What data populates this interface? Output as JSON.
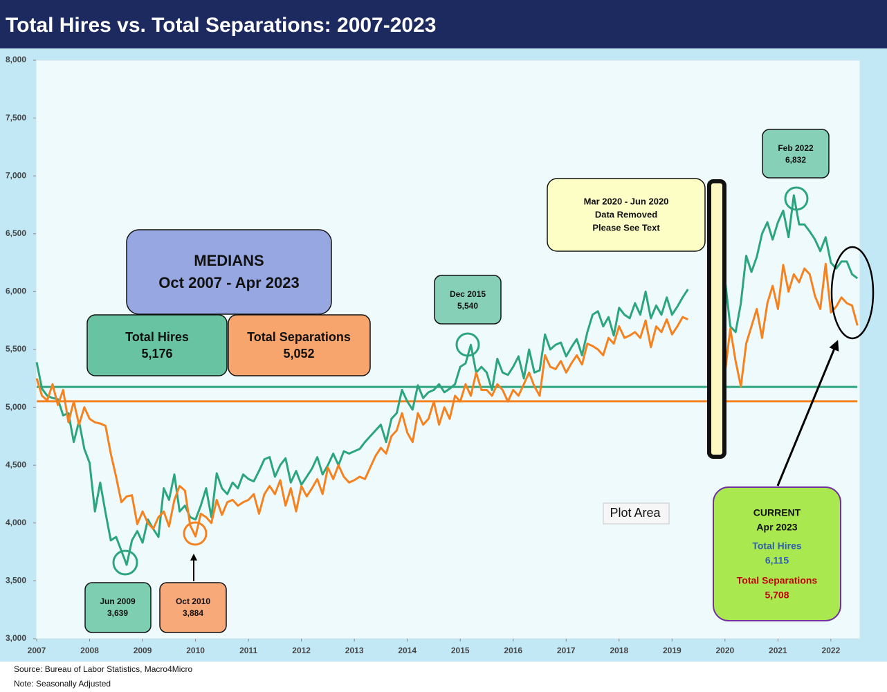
{
  "chart_data": {
    "type": "line",
    "title": "Total Hires vs. Total Separations: 2007-2023",
    "source": "Source: Bureau of Labor Statistics, Macro4Micro",
    "note": "Note: Seasonally Adjusted",
    "tooltip": "Plot Area",
    "xlim": [
      2007,
      2022.55
    ],
    "xticks": [
      2007,
      2008,
      2009,
      2010,
      2011,
      2012,
      2013,
      2014,
      2015,
      2016,
      2017,
      2018,
      2019,
      2020,
      2021,
      2022
    ],
    "ylim": [
      3000,
      8000
    ],
    "yticks": [
      {
        "value": 3000,
        "label": "3,000"
      },
      {
        "value": 3500,
        "label": "3,500"
      },
      {
        "value": 4000,
        "label": "4,000"
      },
      {
        "value": 4500,
        "label": "4,500"
      },
      {
        "value": 5000,
        "label": "5,000"
      },
      {
        "value": 5500,
        "label": "5,500"
      },
      {
        "value": 6000,
        "label": "6,000"
      },
      {
        "value": 6500,
        "label": "6,500"
      },
      {
        "value": 7000,
        "label": "7,000"
      },
      {
        "value": 7500,
        "label": "7,500"
      },
      {
        "value": 8000,
        "label": "8,000"
      }
    ],
    "x": [
      2007,
      2007.1,
      2007.2,
      2007.3,
      2007.4,
      2007.5,
      2007.6,
      2007.7,
      2007.8,
      2007.9,
      2008,
      2008.1,
      2008.2,
      2008.3,
      2008.4,
      2008.5,
      2008.6,
      2008.7,
      2008.8,
      2008.9,
      2009,
      2009.1,
      2009.2,
      2009.3,
      2009.4,
      2009.5,
      2009.6,
      2009.7,
      2009.8,
      2009.9,
      2010,
      2010.1,
      2010.2,
      2010.3,
      2010.4,
      2010.5,
      2010.6,
      2010.7,
      2010.8,
      2010.9,
      2011,
      2011.1,
      2011.2,
      2011.3,
      2011.4,
      2011.5,
      2011.6,
      2011.7,
      2011.8,
      2011.9,
      2012,
      2012.1,
      2012.2,
      2012.3,
      2012.4,
      2012.5,
      2012.6,
      2012.7,
      2012.8,
      2012.9,
      2013,
      2013.1,
      2013.2,
      2013.3,
      2013.4,
      2013.5,
      2013.6,
      2013.7,
      2013.8,
      2013.9,
      2014,
      2014.1,
      2014.2,
      2014.3,
      2014.4,
      2014.5,
      2014.6,
      2014.7,
      2014.8,
      2014.9,
      2015,
      2015.1,
      2015.2,
      2015.3,
      2015.4,
      2015.5,
      2015.6,
      2015.7,
      2015.8,
      2015.9,
      2016,
      2016.1,
      2016.2,
      2016.3,
      2016.4,
      2016.5,
      2016.6,
      2016.7,
      2016.8,
      2016.9,
      2017,
      2017.1,
      2017.2,
      2017.3,
      2017.4,
      2017.5,
      2017.6,
      2017.7,
      2017.8,
      2017.9,
      2018,
      2018.1,
      2018.2,
      2018.3,
      2018.4,
      2018.5,
      2018.6,
      2018.7,
      2018.8,
      2018.9,
      2019,
      2019.1,
      2019.2,
      2019.3,
      2019.6,
      2020,
      2020.1,
      2020.2,
      2020.3,
      2020.4,
      2020.5,
      2020.6,
      2020.7,
      2020.8,
      2020.9,
      2021,
      2021.1,
      2021.2,
      2021.3,
      2021.4,
      2021.5,
      2021.6,
      2021.7,
      2021.8,
      2021.9,
      2022,
      2022.1,
      2022.2,
      2022.3,
      2022.4,
      2022.5
    ],
    "series": [
      {
        "name": "Total Hires",
        "color": "#2ca57f",
        "values": [
          5390,
          5160,
          5100,
          5080,
          5070,
          4930,
          4950,
          4700,
          4880,
          4640,
          4520,
          4100,
          4350,
          4090,
          3850,
          3880,
          3760,
          3639,
          3850,
          3930,
          3830,
          4030,
          3950,
          3880,
          4300,
          4200,
          4420,
          4100,
          4150,
          4050,
          4030,
          4150,
          4300,
          4050,
          4430,
          4300,
          4250,
          4350,
          4300,
          4420,
          4380,
          4360,
          4450,
          4550,
          4570,
          4400,
          4500,
          4560,
          4350,
          4450,
          4330,
          4400,
          4470,
          4570,
          4420,
          4500,
          4600,
          4500,
          4620,
          4600,
          4620,
          4640,
          4700,
          4750,
          4800,
          4850,
          4700,
          4900,
          4950,
          5150,
          5050,
          4980,
          5190,
          5080,
          5130,
          5150,
          5200,
          5130,
          5160,
          5200,
          5350,
          5380,
          5540,
          5300,
          5350,
          5300,
          5150,
          5420,
          5300,
          5280,
          5350,
          5440,
          5250,
          5500,
          5300,
          5320,
          5630,
          5500,
          5540,
          5560,
          5440,
          5520,
          5590,
          5450,
          5650,
          5800,
          5830,
          5700,
          5780,
          5620,
          5860,
          5800,
          5770,
          5900,
          5800,
          6000,
          5770,
          5880,
          5800,
          5950,
          5800,
          5870,
          5950,
          6020,
          null,
          6100,
          5700,
          5650,
          5900,
          6310,
          6170,
          6300,
          6500,
          6600,
          6450,
          6600,
          6700,
          6470,
          6832,
          6580,
          6580,
          6520,
          6450,
          6350,
          6470,
          6250,
          6200,
          6260,
          6260,
          6150,
          6115
        ]
      },
      {
        "name": "Total Separations",
        "color": "#f5821f",
        "values": [
          5250,
          5100,
          5060,
          5200,
          5020,
          5150,
          4870,
          5050,
          4850,
          5000,
          4900,
          4870,
          4860,
          4840,
          4600,
          4400,
          4180,
          4230,
          4240,
          3990,
          4100,
          4000,
          3950,
          4050,
          4100,
          3970,
          4200,
          4320,
          4280,
          3980,
          3884,
          4080,
          4050,
          4000,
          4200,
          4070,
          4180,
          4200,
          4150,
          4180,
          4200,
          4250,
          4080,
          4250,
          4320,
          4250,
          4370,
          4150,
          4300,
          4100,
          4320,
          4230,
          4300,
          4380,
          4250,
          4480,
          4380,
          4500,
          4400,
          4350,
          4370,
          4400,
          4380,
          4480,
          4580,
          4650,
          4600,
          4750,
          4800,
          4950,
          4780,
          4700,
          4950,
          4850,
          4900,
          5050,
          4850,
          5000,
          4900,
          5100,
          5050,
          5200,
          5100,
          5300,
          5150,
          5150,
          5100,
          5200,
          5150,
          5050,
          5150,
          5100,
          5200,
          5300,
          5180,
          5100,
          5450,
          5350,
          5330,
          5400,
          5300,
          5380,
          5450,
          5370,
          5550,
          5530,
          5500,
          5450,
          5600,
          5550,
          5700,
          5600,
          5620,
          5650,
          5600,
          5750,
          5520,
          5700,
          5650,
          5760,
          5630,
          5700,
          5780,
          5760,
          null,
          5300,
          5680,
          5400,
          5180,
          5550,
          5700,
          5850,
          5600,
          5900,
          6050,
          5850,
          6230,
          6000,
          6150,
          6080,
          6200,
          6150,
          5960,
          5850,
          6240,
          5820,
          5870,
          5950,
          5900,
          5880,
          5708
        ]
      }
    ],
    "medians": {
      "title": "MEDIANS",
      "period": "Oct 2007 - Apr 2023",
      "values": [
        5176,
        5052
      ],
      "value_labels": [
        "5,176",
        "5,052"
      ]
    },
    "callouts": [
      {
        "label": "Jun 2009",
        "value": 3639,
        "value_label": "3,639"
      },
      {
        "label": "Oct 2010",
        "value": 3884,
        "value_label": "3,884"
      },
      {
        "label": "Dec 2015",
        "value": 5540,
        "value_label": "5,540"
      },
      {
        "label": "Feb 2022",
        "value": 6832,
        "value_label": "6,832"
      }
    ],
    "gap_note": [
      "Mar 2020 - Jun 2020",
      "Data Removed",
      "Please See Text"
    ],
    "current": {
      "title": "CURRENT",
      "date": "Apr 2023",
      "values": [
        6115,
        5708
      ],
      "value_labels": [
        "6,115",
        "5,708"
      ]
    }
  }
}
